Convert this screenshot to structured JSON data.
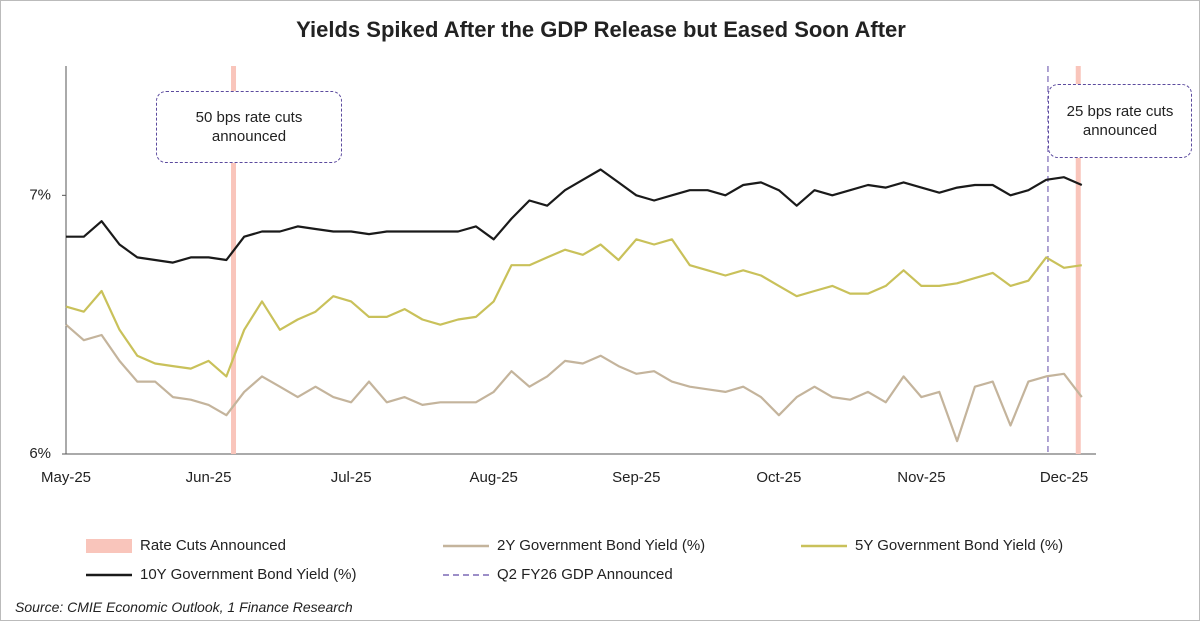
{
  "chart_data": {
    "type": "line",
    "title": "Yields Spiked After the GDP Release but Eased Soon After",
    "categories": [
      "May-25",
      null,
      null,
      null,
      null,
      null,
      null,
      null,
      "Jun-25",
      null,
      null,
      null,
      null,
      null,
      null,
      null,
      "Jul-25",
      null,
      null,
      null,
      null,
      null,
      null,
      null,
      "Aug-25",
      null,
      null,
      null,
      null,
      null,
      null,
      null,
      "Sep-25",
      null,
      null,
      null,
      null,
      null,
      null,
      null,
      "Oct-25",
      null,
      null,
      null,
      null,
      null,
      null,
      null,
      "Nov-25",
      null,
      null,
      null,
      null,
      null,
      null,
      null,
      "Dec-25",
      null
    ],
    "series": [
      {
        "name": "2Y Government Bond Yield (%)",
        "color": "#c4b49c",
        "values": [
          6.5,
          6.44,
          6.46,
          6.36,
          6.28,
          6.28,
          6.22,
          6.21,
          6.19,
          6.15,
          6.24,
          6.3,
          6.26,
          6.22,
          6.26,
          6.22,
          6.2,
          6.28,
          6.2,
          6.22,
          6.19,
          6.2,
          6.2,
          6.2,
          6.24,
          6.32,
          6.26,
          6.3,
          6.36,
          6.35,
          6.38,
          6.34,
          6.31,
          6.32,
          6.28,
          6.26,
          6.25,
          6.24,
          6.26,
          6.22,
          6.15,
          6.22,
          6.26,
          6.22,
          6.21,
          6.24,
          6.2,
          6.3,
          6.22,
          6.24,
          6.05,
          6.26,
          6.28,
          6.11,
          6.28,
          6.3,
          6.31,
          6.22
        ]
      },
      {
        "name": "5Y Government Bond Yield (%)",
        "color": "#c9c15a",
        "values": [
          6.57,
          6.55,
          6.63,
          6.48,
          6.38,
          6.35,
          6.34,
          6.33,
          6.36,
          6.3,
          6.48,
          6.59,
          6.48,
          6.52,
          6.55,
          6.61,
          6.59,
          6.53,
          6.53,
          6.56,
          6.52,
          6.5,
          6.52,
          6.53,
          6.59,
          6.73,
          6.73,
          6.76,
          6.79,
          6.77,
          6.81,
          6.75,
          6.83,
          6.81,
          6.83,
          6.73,
          6.71,
          6.69,
          6.71,
          6.69,
          6.65,
          6.61,
          6.63,
          6.65,
          6.62,
          6.62,
          6.65,
          6.71,
          6.65,
          6.65,
          6.66,
          6.68,
          6.7,
          6.65,
          6.67,
          6.76,
          6.72,
          6.73
        ]
      },
      {
        "name": "10Y Government Bond Yield (%)",
        "color": "#1a1a1a",
        "values": [
          6.84,
          6.84,
          6.9,
          6.81,
          6.76,
          6.75,
          6.74,
          6.76,
          6.76,
          6.75,
          6.84,
          6.86,
          6.86,
          6.88,
          6.87,
          6.86,
          6.86,
          6.85,
          6.86,
          6.86,
          6.86,
          6.86,
          6.86,
          6.88,
          6.83,
          6.91,
          6.98,
          6.96,
          7.02,
          7.06,
          7.1,
          7.05,
          7.0,
          6.98,
          7.0,
          7.02,
          7.02,
          7.0,
          7.04,
          7.05,
          7.02,
          6.96,
          7.02,
          7.0,
          7.02,
          7.04,
          7.03,
          7.05,
          7.03,
          7.01,
          7.03,
          7.04,
          7.04,
          7.0,
          7.02,
          7.06,
          7.07,
          7.04
        ]
      }
    ],
    "events": [
      {
        "name": "Rate Cuts Announced",
        "color": "#f9c5bb",
        "style": "band",
        "x": [
          9.4,
          56.8
        ]
      },
      {
        "name": "Q2 FY26 GDP Announced",
        "color": "#7b68b5",
        "style": "dashed",
        "x": [
          55.1
        ]
      }
    ],
    "annotations": [
      "50 bps rate cuts announced",
      "25 bps rate cuts announced"
    ],
    "ylim": [
      6,
      7.5
    ],
    "yticks": [
      {
        "value": 6,
        "label": "6%"
      },
      {
        "value": 7,
        "label": "7%"
      }
    ],
    "grid": false,
    "source": "Source: CMIE Economic Outlook, 1 Finance Research"
  }
}
